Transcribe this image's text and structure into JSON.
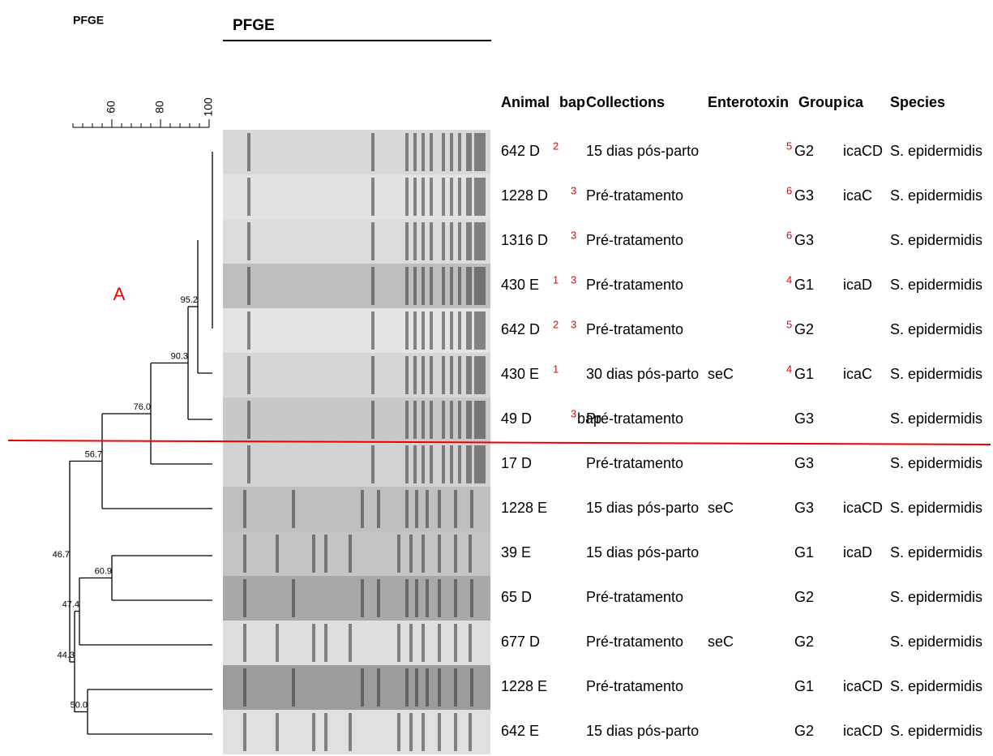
{
  "header": {
    "title_left": "PFGE",
    "title_gel": "PFGE"
  },
  "scale": {
    "ticks": [
      "60",
      "80",
      "100"
    ]
  },
  "cluster_label": "A",
  "dendrogram": {
    "nodes": [
      "95.2",
      "90.3",
      "76.0",
      "56.7",
      "60.9",
      "47.4",
      "50.0",
      "44.3",
      "46.7"
    ]
  },
  "table": {
    "columns": [
      "Animal",
      "bap",
      "Collections",
      "Enterotoxin",
      "Group",
      "ica",
      "Species"
    ],
    "rows": [
      {
        "animal": "642 D",
        "animal_sup": "2",
        "collection": "15 dias pós-parto",
        "group_sup": "5",
        "group": "G2",
        "ica": "icaCD",
        "species": "S. epidermidis"
      },
      {
        "animal": "1228 D",
        "bap_sup": "3",
        "collection": "Pré-tratamento",
        "group_sup": "6",
        "group": "G3",
        "ica": "icaC",
        "species": "S. epidermidis"
      },
      {
        "animal": "1316 D",
        "bap_sup": "3",
        "collection": "Pré-tratamento",
        "group_sup": "6",
        "group": "G3",
        "species": "S. epidermidis"
      },
      {
        "animal": "430 E",
        "animal_sup": "1",
        "bap_sup": "3",
        "collection": "Pré-tratamento",
        "group_sup": "4",
        "group": "G1",
        "ica": "icaD",
        "species": "S. epidermidis"
      },
      {
        "animal": "642 D",
        "animal_sup": "2",
        "bap_sup": "3",
        "collection": "Pré-tratamento",
        "group_sup": "5",
        "group": "G2",
        "species": "S. epidermidis"
      },
      {
        "animal": "430 E",
        "animal_sup": "1",
        "collection": "30 dias pós-parto",
        "enterotoxin": "seC",
        "group_sup": "4",
        "group": "G1",
        "ica": "icaC",
        "species": "S. epidermidis"
      },
      {
        "animal": "49 D",
        "bap_sup": "3",
        "bap": "bap",
        "collection": "Pré-tratamento",
        "group": "G3",
        "species": "S. epidermidis"
      },
      {
        "animal": "17 D",
        "collection": "Pré-tratamento",
        "group": "G3",
        "species": "S. epidermidis"
      },
      {
        "animal": "1228 E",
        "collection": "15 dias pós-parto",
        "enterotoxin": "seC",
        "group": "G3",
        "ica": "icaCD",
        "species": "S. epidermidis"
      },
      {
        "animal": "39 E",
        "collection": "15 dias pós-parto",
        "group": "G1",
        "ica": "icaD",
        "species": "S. epidermidis"
      },
      {
        "animal": "65 D",
        "collection": "Pré-tratamento",
        "group": "G2",
        "species": "S. epidermidis"
      },
      {
        "animal": "677 D",
        "collection": "Pré-tratamento",
        "enterotoxin": "seC",
        "group": "G2",
        "species": "S. epidermidis"
      },
      {
        "animal": "1228 E",
        "collection": "Pré-tratamento",
        "group": "G1",
        "ica": "icaCD",
        "species": "S. epidermidis"
      },
      {
        "animal": "642 E",
        "collection": "15 dias pós-parto",
        "group": "G2",
        "ica": "icaCD",
        "species": "S. epidermidis"
      }
    ]
  }
}
